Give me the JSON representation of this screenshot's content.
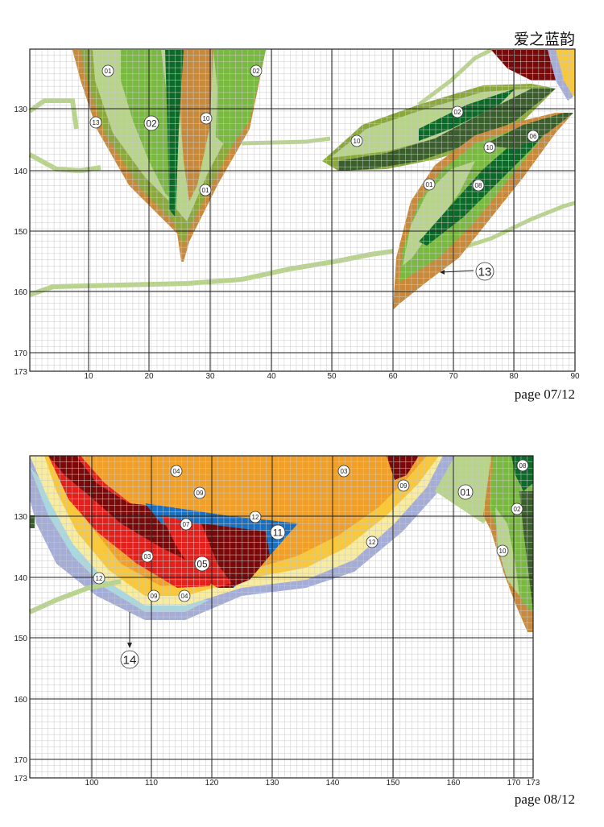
{
  "header": {
    "title": "爱之蓝韵"
  },
  "pages": [
    {
      "label": "page 07/12",
      "y_ticks": [
        "130",
        "140",
        "150",
        "160",
        "170",
        "173"
      ],
      "x_ticks": [
        "10",
        "20",
        "30",
        "40",
        "50",
        "60",
        "70",
        "80",
        "90"
      ],
      "symbols": [
        "01",
        "02",
        "13",
        "02",
        "10",
        "01",
        "02",
        "10",
        "10",
        "06",
        "01",
        "08",
        "13"
      ]
    },
    {
      "label": "page 08/12",
      "y_ticks": [
        "130",
        "140",
        "150",
        "160",
        "170",
        "173"
      ],
      "x_ticks": [
        "100",
        "110",
        "120",
        "130",
        "140",
        "150",
        "160",
        "170",
        "173"
      ],
      "symbols": [
        "04",
        "03",
        "09",
        "09",
        "01",
        "08",
        "02",
        "12",
        "07",
        "11",
        "03",
        "05",
        "12",
        "12",
        "09",
        "04",
        "10",
        "14"
      ]
    }
  ],
  "palette": {
    "c01": "#b8d48a",
    "c02": "#79b940",
    "c03": "#f0a028",
    "c04": "#f8c83a",
    "c05": "#e4201c",
    "c06": "#3a5e2c",
    "c07": "#7a0a0a",
    "c08": "#0c6a28",
    "c09": "#a4acd8",
    "c10": "#8aa83c",
    "c11": "#1a70c0",
    "c12": "#a8d8e0",
    "c13": "#c88a3a",
    "c14": "#f8eca0"
  }
}
